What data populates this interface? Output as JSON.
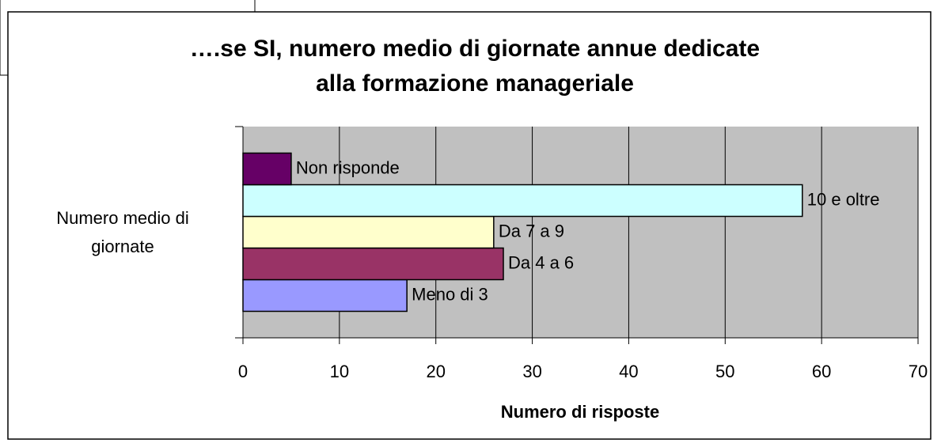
{
  "chart_data": {
    "type": "hbar",
    "title": [
      "….se SI, numero medio di giornate annue dedicate",
      "alla formazione manageriale"
    ],
    "x_label": "Numero di risposte",
    "categories": [
      "Numero medio di giornate"
    ],
    "series": [
      {
        "name": "Meno di 3",
        "color": "#9999ff",
        "values": [
          17
        ]
      },
      {
        "name": "Da 4 a 6",
        "color": "#993366",
        "values": [
          27
        ]
      },
      {
        "name": "Da 7 a 9",
        "color": "#ffffcc",
        "values": [
          26
        ]
      },
      {
        "name": "10 e oltre",
        "color": "#ccffff",
        "values": [
          58
        ]
      },
      {
        "name": "Non risponde",
        "color": "#660066",
        "values": [
          5
        ]
      }
    ],
    "xlim": [
      0,
      70
    ],
    "xticks": [
      0,
      10,
      20,
      30,
      40,
      50,
      60,
      70
    ],
    "grid": true
  }
}
